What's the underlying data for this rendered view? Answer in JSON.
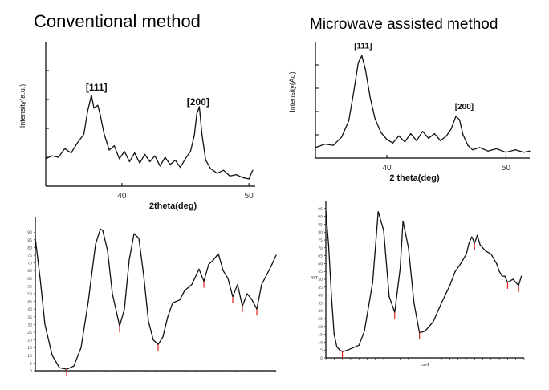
{
  "headings": {
    "left": "Conventional method",
    "right": "Microwave assisted method"
  },
  "chart_data": [
    {
      "id": "xrd-conventional",
      "type": "line",
      "title": "",
      "xlabel": "2theta(deg)",
      "ylabel": "Intensity(a.u.)",
      "xlim": [
        34,
        50.5
      ],
      "ylim": [
        0,
        10
      ],
      "xticks": [
        40,
        50
      ],
      "peak_labels": [
        {
          "text": "[111]",
          "x": 38.0,
          "y": 6.6
        },
        {
          "text": "[200]",
          "x": 46.0,
          "y": 5.6
        }
      ],
      "x": [
        34.0,
        34.5,
        35.0,
        35.5,
        36.0,
        36.5,
        37.0,
        37.3,
        37.6,
        37.8,
        38.1,
        38.3,
        38.6,
        39.0,
        39.4,
        39.8,
        40.2,
        40.6,
        41.0,
        41.4,
        41.8,
        42.2,
        42.6,
        43.0,
        43.4,
        43.8,
        44.2,
        44.6,
        45.0,
        45.4,
        45.7,
        45.9,
        46.1,
        46.3,
        46.6,
        47.0,
        47.5,
        48.0,
        48.5,
        49.0,
        49.5,
        50.0,
        50.3
      ],
      "y": [
        1.9,
        2.1,
        2.0,
        2.6,
        2.3,
        3.0,
        3.6,
        5.2,
        6.3,
        5.4,
        5.6,
        4.9,
        3.6,
        2.5,
        2.8,
        1.9,
        2.4,
        1.7,
        2.3,
        1.6,
        2.2,
        1.7,
        2.1,
        1.4,
        2.0,
        1.5,
        1.8,
        1.3,
        1.9,
        2.4,
        3.5,
        5.0,
        5.5,
        3.6,
        1.8,
        1.2,
        0.9,
        1.1,
        0.7,
        0.8,
        0.6,
        0.5,
        1.1
      ]
    },
    {
      "id": "xrd-microwave",
      "type": "line",
      "title": "",
      "xlabel": "2 theta(deg)",
      "ylabel": "Intensity(Au)",
      "xlim": [
        34,
        52
      ],
      "ylim": [
        0,
        10
      ],
      "xticks": [
        40,
        50
      ],
      "peak_labels": [
        {
          "text": "[111]",
          "x": 38.0,
          "y": 9.4
        },
        {
          "text": "[200]",
          "x": 46.5,
          "y": 4.2
        }
      ],
      "x": [
        34.0,
        34.8,
        35.5,
        36.2,
        36.8,
        37.2,
        37.6,
        37.9,
        38.2,
        38.6,
        39.0,
        39.5,
        40.0,
        40.5,
        41.0,
        41.5,
        42.0,
        42.5,
        43.0,
        43.5,
        44.0,
        44.5,
        45.0,
        45.4,
        45.8,
        46.1,
        46.4,
        46.8,
        47.2,
        47.8,
        48.5,
        49.2,
        50.0,
        50.8,
        51.5,
        52.0
      ],
      "y": [
        0.9,
        1.2,
        1.1,
        1.8,
        3.2,
        5.6,
        8.2,
        8.8,
        7.6,
        5.2,
        3.4,
        2.2,
        1.6,
        1.3,
        1.9,
        1.4,
        2.1,
        1.5,
        2.3,
        1.7,
        2.1,
        1.5,
        1.9,
        2.5,
        3.6,
        3.3,
        2.0,
        1.1,
        0.7,
        0.9,
        0.6,
        0.8,
        0.5,
        0.7,
        0.5,
        0.6
      ]
    },
    {
      "id": "ir-conventional",
      "type": "line",
      "title": "",
      "xlabel": "",
      "ylabel": "",
      "xlim": [
        0,
        1
      ],
      "ylim": [
        0,
        100
      ],
      "yticks": [
        0,
        5,
        10,
        15,
        20,
        25,
        30,
        35,
        40,
        45,
        50,
        55,
        60,
        65,
        70,
        75,
        80,
        85,
        90
      ],
      "x": [
        0.0,
        0.02,
        0.04,
        0.07,
        0.1,
        0.13,
        0.16,
        0.19,
        0.22,
        0.25,
        0.27,
        0.28,
        0.3,
        0.32,
        0.35,
        0.37,
        0.39,
        0.41,
        0.43,
        0.45,
        0.47,
        0.49,
        0.51,
        0.53,
        0.55,
        0.57,
        0.6,
        0.62,
        0.65,
        0.68,
        0.7,
        0.72,
        0.74,
        0.76,
        0.78,
        0.8,
        0.82,
        0.84,
        0.86,
        0.88,
        0.9,
        0.92,
        0.94,
        0.96,
        0.98,
        1.0
      ],
      "y": [
        86,
        60,
        30,
        10,
        2,
        1,
        3,
        15,
        45,
        82,
        92,
        91,
        78,
        50,
        29,
        40,
        72,
        89,
        86,
        62,
        32,
        20,
        17,
        22,
        35,
        44,
        46,
        52,
        56,
        66,
        58,
        69,
        72,
        76,
        65,
        60,
        48,
        56,
        42,
        50,
        46,
        40,
        56,
        62,
        68,
        75
      ]
    },
    {
      "id": "ir-microwave",
      "type": "line",
      "title": "",
      "xlabel": "cm-1",
      "ylabel": "%T",
      "xlim": [
        4000,
        400
      ],
      "ylim": [
        0,
        100
      ],
      "yticks": [
        0,
        5,
        10,
        15,
        20,
        25,
        30,
        35,
        40,
        45,
        50,
        55,
        60,
        65,
        70,
        75,
        80,
        85,
        90,
        95
      ],
      "x": [
        4000,
        3950,
        3900,
        3850,
        3800,
        3750,
        3700,
        3600,
        3400,
        3300,
        3150,
        3050,
        2950,
        2850,
        2750,
        2650,
        2600,
        2500,
        2400,
        2300,
        2200,
        2050,
        1900,
        1750,
        1650,
        1550,
        1450,
        1400,
        1350,
        1300,
        1250,
        1200,
        1100,
        1000,
        900,
        850,
        800,
        750,
        700,
        600,
        500,
        450
      ],
      "y": [
        93,
        72,
        40,
        15,
        7,
        5,
        4,
        5,
        8,
        17,
        48,
        93,
        81,
        39,
        29,
        57,
        87,
        70,
        35,
        16,
        17,
        23,
        35,
        46,
        55,
        60,
        66,
        73,
        77,
        73,
        78,
        72,
        68,
        66,
        60,
        55,
        52,
        52,
        48,
        50,
        46,
        52
      ]
    }
  ]
}
